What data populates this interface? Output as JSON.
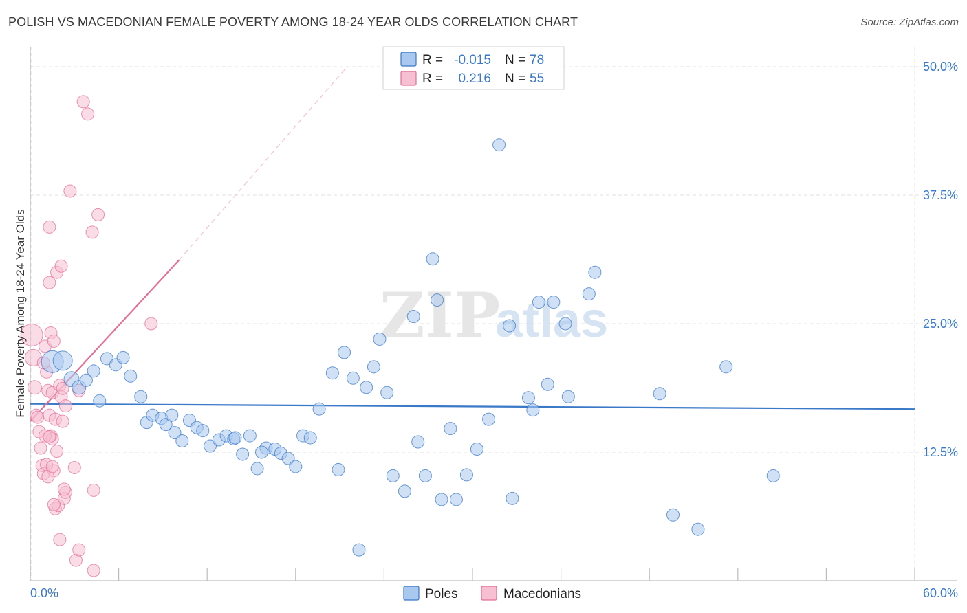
{
  "title": "POLISH VS MACEDONIAN FEMALE POVERTY AMONG 18-24 YEAR OLDS CORRELATION CHART",
  "source": "Source: ZipAtlas.com",
  "watermark": {
    "zip": "ZIP",
    "atlas": "atlas"
  },
  "colors": {
    "poles": "#3a78c8",
    "poles_fill": "#a9c8ef",
    "macedonians": "#e36f98",
    "macedonians_fill": "#f6bfd2",
    "grid": "#e2e2e2",
    "axis_text": "#3a78c8"
  },
  "legend": {
    "rows": [
      {
        "r_label": "R =",
        "r_value": "-0.015",
        "n_label": "N =",
        "n_value": "78"
      },
      {
        "r_label": "R =",
        "r_value": "0.216",
        "n_label": "N =",
        "n_value": "55"
      }
    ]
  },
  "bottom_legend": [
    "Poles",
    "Macedonians"
  ],
  "chart_data": {
    "type": "scatter",
    "title": "POLISH VS MACEDONIAN FEMALE POVERTY AMONG 18-24 YEAR OLDS CORRELATION CHART",
    "xlabel": "",
    "ylabel": "Female Poverty Among 18-24 Year Olds",
    "xlim": [
      0,
      60
    ],
    "ylim": [
      0,
      50
    ],
    "x_tick_labels": [
      "0.0%",
      "60.0%"
    ],
    "y_tick_labels": [
      "12.5%",
      "25.0%",
      "37.5%",
      "50.0%"
    ],
    "y_ticks": [
      12.5,
      25.0,
      37.5,
      50.0
    ],
    "grid": true,
    "legend_position": "top-center",
    "series": [
      {
        "name": "Poles",
        "color": "#3a78c8",
        "trend": {
          "x": [
            0,
            60
          ],
          "y": [
            17.2,
            16.7
          ],
          "dashed": false
        },
        "points": [
          [
            1.5,
            21.3,
            16
          ],
          [
            2.2,
            21.4,
            14
          ],
          [
            2.8,
            19.6,
            11
          ],
          [
            3.3,
            18.8,
            10
          ],
          [
            3.8,
            19.5,
            9
          ],
          [
            4.3,
            20.4,
            9
          ],
          [
            4.7,
            17.5,
            9
          ],
          [
            5.2,
            21.6,
            9
          ],
          [
            5.8,
            21.0,
            9
          ],
          [
            6.3,
            21.7,
            9
          ],
          [
            6.8,
            19.9,
            9
          ],
          [
            7.5,
            17.9,
            9
          ],
          [
            7.9,
            15.4,
            9
          ],
          [
            8.3,
            16.1,
            9
          ],
          [
            8.9,
            15.8,
            9
          ],
          [
            9.2,
            15.2,
            9
          ],
          [
            9.8,
            14.4,
            9
          ],
          [
            10.3,
            13.6,
            9
          ],
          [
            10.8,
            15.6,
            9
          ],
          [
            11.3,
            14.9,
            9
          ],
          [
            11.7,
            14.6,
            9
          ],
          [
            12.2,
            13.1,
            9
          ],
          [
            12.8,
            13.7,
            9
          ],
          [
            13.3,
            14.1,
            9
          ],
          [
            13.8,
            13.8,
            9
          ],
          [
            14.4,
            12.3,
            9
          ],
          [
            14.9,
            14.1,
            9
          ],
          [
            15.4,
            10.9,
            9
          ],
          [
            16.0,
            12.9,
            9
          ],
          [
            16.6,
            12.8,
            9
          ],
          [
            17.0,
            12.4,
            9
          ],
          [
            17.5,
            11.9,
            9
          ],
          [
            18.0,
            11.1,
            9
          ],
          [
            18.5,
            14.1,
            9
          ],
          [
            19.0,
            13.9,
            9
          ],
          [
            19.6,
            16.7,
            9
          ],
          [
            20.5,
            20.2,
            9
          ],
          [
            20.9,
            10.8,
            9
          ],
          [
            21.3,
            22.2,
            9
          ],
          [
            21.9,
            19.7,
            9
          ],
          [
            22.8,
            18.8,
            9
          ],
          [
            23.3,
            20.8,
            9
          ],
          [
            23.7,
            23.5,
            9
          ],
          [
            24.2,
            18.3,
            9
          ],
          [
            24.6,
            10.2,
            9
          ],
          [
            25.4,
            8.7,
            9
          ],
          [
            26.0,
            25.7,
            9
          ],
          [
            26.3,
            13.5,
            9
          ],
          [
            26.8,
            10.2,
            9
          ],
          [
            27.3,
            31.3,
            9
          ],
          [
            27.6,
            27.3,
            9
          ],
          [
            27.9,
            7.9,
            9
          ],
          [
            28.5,
            14.8,
            9
          ],
          [
            28.9,
            7.9,
            9
          ],
          [
            29.6,
            10.3,
            9
          ],
          [
            30.3,
            12.8,
            9
          ],
          [
            31.1,
            15.7,
            9
          ],
          [
            31.8,
            42.4,
            9
          ],
          [
            32.5,
            24.8,
            9
          ],
          [
            32.7,
            8.0,
            9
          ],
          [
            33.8,
            17.8,
            9
          ],
          [
            34.1,
            16.6,
            9
          ],
          [
            34.5,
            27.1,
            9
          ],
          [
            35.1,
            19.1,
            9
          ],
          [
            35.5,
            27.1,
            9
          ],
          [
            36.3,
            25.0,
            9
          ],
          [
            36.5,
            17.9,
            9
          ],
          [
            37.9,
            27.9,
            9
          ],
          [
            38.3,
            30.0,
            9
          ],
          [
            42.7,
            18.2,
            9
          ],
          [
            43.6,
            6.4,
            9
          ],
          [
            45.3,
            5.0,
            9
          ],
          [
            47.2,
            20.8,
            9
          ],
          [
            50.4,
            10.2,
            9
          ],
          [
            22.3,
            3.0,
            9
          ],
          [
            13.9,
            13.9,
            9
          ],
          [
            15.7,
            12.5,
            9
          ],
          [
            9.6,
            16.1,
            9
          ]
        ]
      },
      {
        "name": "Macedonians",
        "color": "#e36f98",
        "trend": {
          "x": [
            0,
            10.1
          ],
          "y": [
            15.5,
            31.2
          ],
          "dashed_extension": {
            "x": [
              10.1,
              21.5
            ],
            "y": [
              31.2,
              50.0
            ]
          }
        },
        "points": [
          [
            0.1,
            23.9,
            16
          ],
          [
            0.2,
            21.7,
            12
          ],
          [
            0.3,
            18.8,
            10
          ],
          [
            0.4,
            16.1,
            9
          ],
          [
            0.5,
            15.9,
            9
          ],
          [
            0.6,
            14.5,
            9
          ],
          [
            0.7,
            12.9,
            9
          ],
          [
            0.8,
            11.2,
            9
          ],
          [
            0.9,
            10.4,
            9
          ],
          [
            1.0,
            22.8,
            9
          ],
          [
            1.1,
            20.3,
            9
          ],
          [
            1.2,
            18.5,
            9
          ],
          [
            1.3,
            16.1,
            9
          ],
          [
            1.4,
            14.1,
            9
          ],
          [
            1.5,
            13.8,
            9
          ],
          [
            1.6,
            10.7,
            9
          ],
          [
            1.7,
            7.0,
            9
          ],
          [
            1.0,
            14.1,
            9
          ],
          [
            1.1,
            11.3,
            9
          ],
          [
            1.2,
            10.1,
            9
          ],
          [
            1.3,
            29.0,
            9
          ],
          [
            1.3,
            34.4,
            9
          ],
          [
            1.4,
            24.1,
            9
          ],
          [
            1.5,
            18.3,
            9
          ],
          [
            1.6,
            23.3,
            9
          ],
          [
            1.7,
            15.7,
            9
          ],
          [
            1.8,
            12.6,
            9
          ],
          [
            1.9,
            7.3,
            9
          ],
          [
            2.0,
            19.0,
            9
          ],
          [
            2.1,
            17.9,
            9
          ],
          [
            2.2,
            15.5,
            9
          ],
          [
            2.3,
            8.0,
            9
          ],
          [
            2.4,
            8.6,
            9
          ],
          [
            1.8,
            30.0,
            9
          ],
          [
            2.0,
            4.0,
            9
          ],
          [
            2.1,
            30.6,
            9
          ],
          [
            2.3,
            8.9,
            9
          ],
          [
            2.4,
            17.0,
            9
          ],
          [
            2.2,
            18.7,
            9
          ],
          [
            1.6,
            7.4,
            9
          ],
          [
            2.7,
            37.9,
            9
          ],
          [
            3.0,
            11.0,
            9
          ],
          [
            3.1,
            2.0,
            9
          ],
          [
            3.3,
            3.0,
            9
          ],
          [
            3.3,
            18.5,
            9
          ],
          [
            3.6,
            46.6,
            9
          ],
          [
            3.9,
            45.4,
            9
          ],
          [
            4.2,
            33.9,
            9
          ],
          [
            4.6,
            35.6,
            9
          ],
          [
            4.3,
            1.0,
            9
          ],
          [
            4.3,
            8.8,
            9
          ],
          [
            8.2,
            25.0,
            9
          ],
          [
            1.5,
            11.1,
            9
          ],
          [
            1.3,
            14.0,
            9
          ],
          [
            0.9,
            21.2,
            9
          ]
        ]
      }
    ]
  }
}
